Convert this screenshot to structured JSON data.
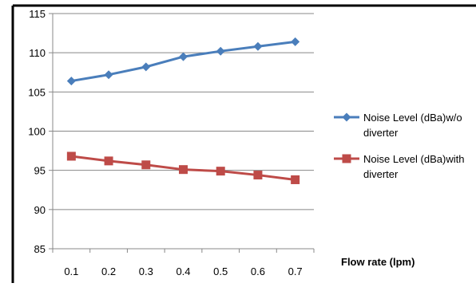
{
  "chart_data": {
    "type": "line",
    "title": "",
    "xlabel": "Flow rate (lpm)",
    "ylabel": "",
    "x": [
      0.1,
      0.2,
      0.3,
      0.4,
      0.5,
      0.6,
      0.7
    ],
    "x_tick_labels": [
      "0.1",
      "0.2",
      "0.3",
      "0.4",
      "0.5",
      "0.6",
      "0.7"
    ],
    "ylim": [
      85,
      115
    ],
    "y_ticks": [
      85,
      90,
      95,
      100,
      105,
      110,
      115
    ],
    "y_tick_labels": [
      "85",
      "90",
      "95",
      "100",
      "105",
      "110",
      "115"
    ],
    "grid": "horizontal",
    "legend_position": "right",
    "series": [
      {
        "name": "Noise Level (dBa)w/o diverter",
        "legend_lines": [
          "Noise Level (dBa)w/o",
          "diverter"
        ],
        "color": "#4A7EBB",
        "marker": "diamond",
        "values": [
          106.4,
          107.2,
          108.2,
          109.5,
          110.2,
          110.8,
          111.4
        ]
      },
      {
        "name": "Noise Level (dBa)with diverter",
        "legend_lines": [
          "Noise Level (dBa)with",
          "diverter"
        ],
        "color": "#BE4B48",
        "marker": "square",
        "values": [
          96.8,
          96.2,
          95.7,
          95.1,
          94.9,
          94.4,
          93.8
        ]
      }
    ]
  }
}
